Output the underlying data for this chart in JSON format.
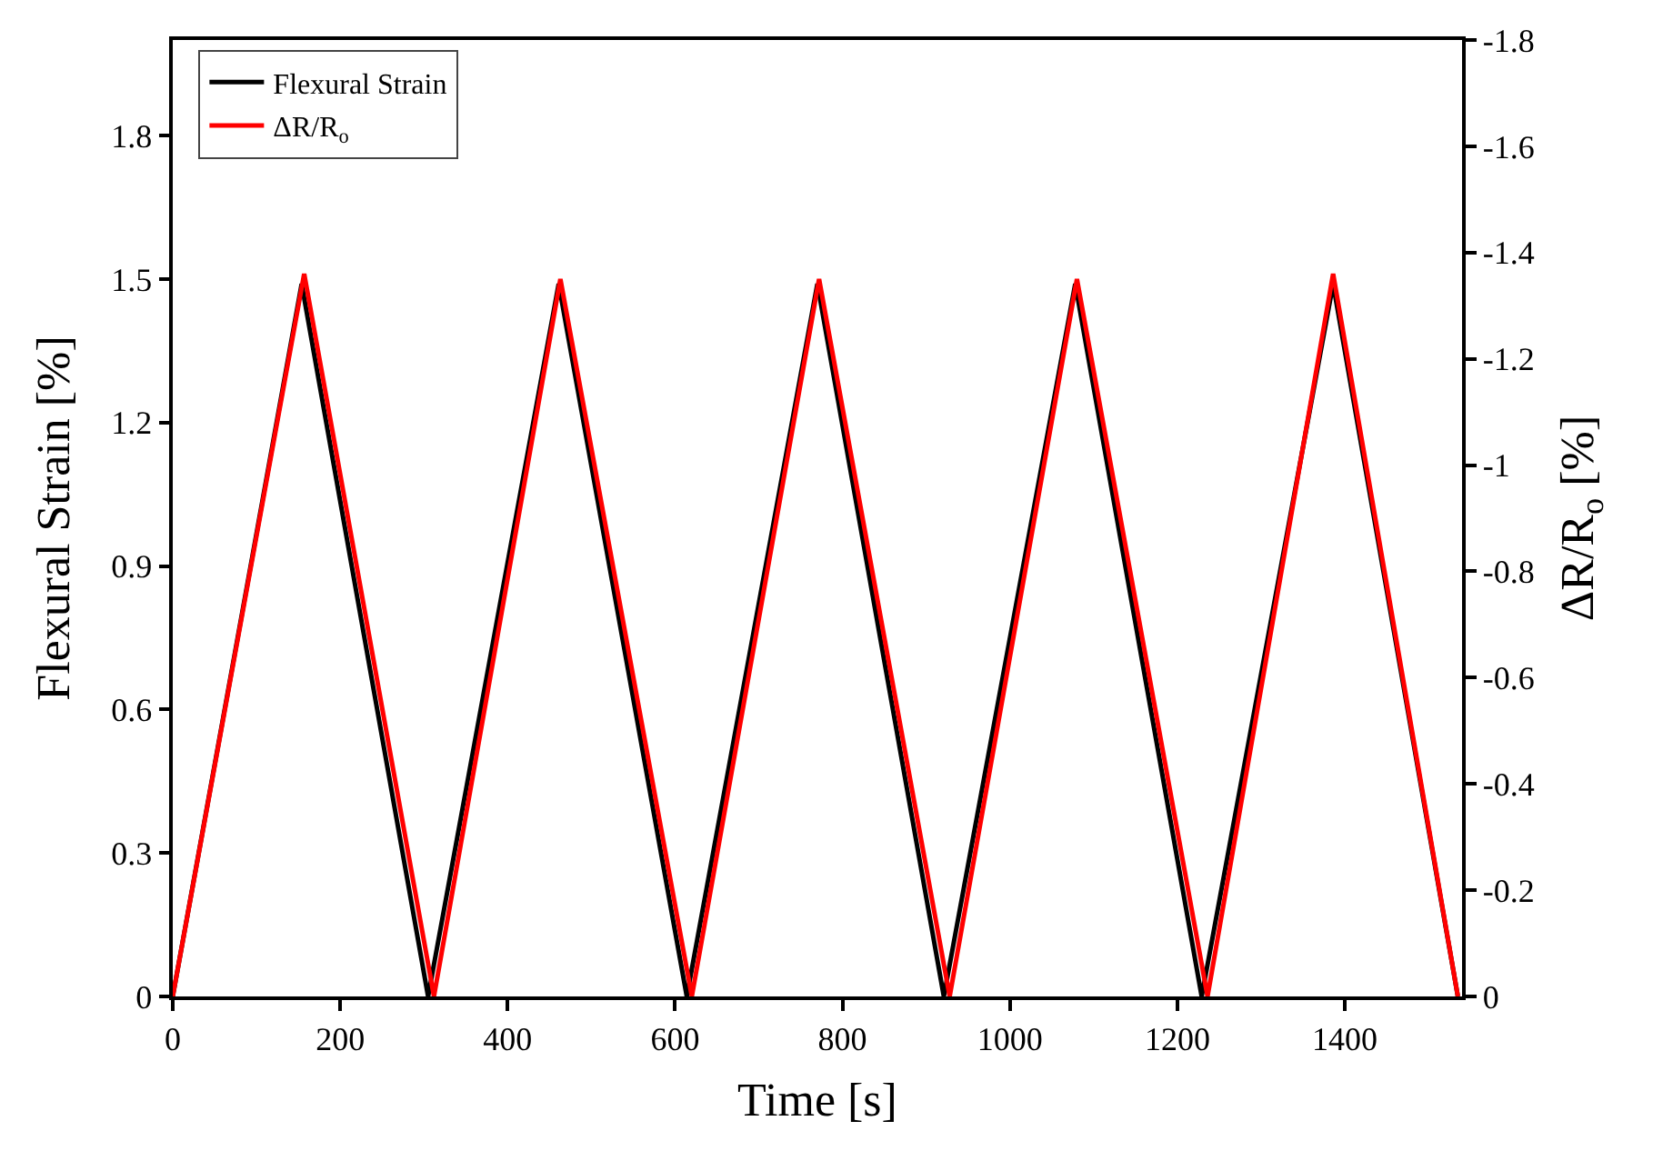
{
  "chart_data": {
    "type": "line",
    "xlabel": "Time [s]",
    "ylabel": "Flexural Strain [%]",
    "y2label": "ΔR/R$_{o}$ [%]",
    "xlim": [
      0,
      1540
    ],
    "xticks": [
      0,
      200,
      400,
      600,
      800,
      1000,
      1200,
      1400
    ],
    "ylim": [
      0,
      2.0
    ],
    "yticks": [
      0,
      0.3,
      0.6,
      0.9,
      1.2,
      1.5,
      1.8
    ],
    "y2lim": [
      0,
      -1.8
    ],
    "y2ticks": [
      0,
      -0.2,
      -0.4,
      -0.6,
      -0.8,
      -1,
      -1.2,
      -1.4,
      -1.6,
      -1.8
    ],
    "legend": "top left",
    "marker": "none",
    "line_style": "solid",
    "series": [
      {
        "name": "Flexural Strain",
        "color": "#000000",
        "x": [
          0,
          154,
          305,
          461,
          614,
          770,
          921,
          1078,
          1229,
          1386,
          1535
        ],
        "values": [
          0,
          1.49,
          0,
          1.49,
          0,
          1.49,
          0,
          1.49,
          0,
          1.49,
          0
        ]
      },
      {
        "name": "ΔR/R$_{o}$",
        "color": "#ff0000",
        "axis": "y2",
        "x": [
          0,
          157,
          312,
          463,
          620,
          772,
          928,
          1080,
          1236,
          1386,
          1535
        ],
        "values": [
          0,
          -1.36,
          0,
          -1.35,
          0,
          -1.35,
          0,
          -1.35,
          0,
          -1.36,
          0
        ]
      }
    ]
  }
}
